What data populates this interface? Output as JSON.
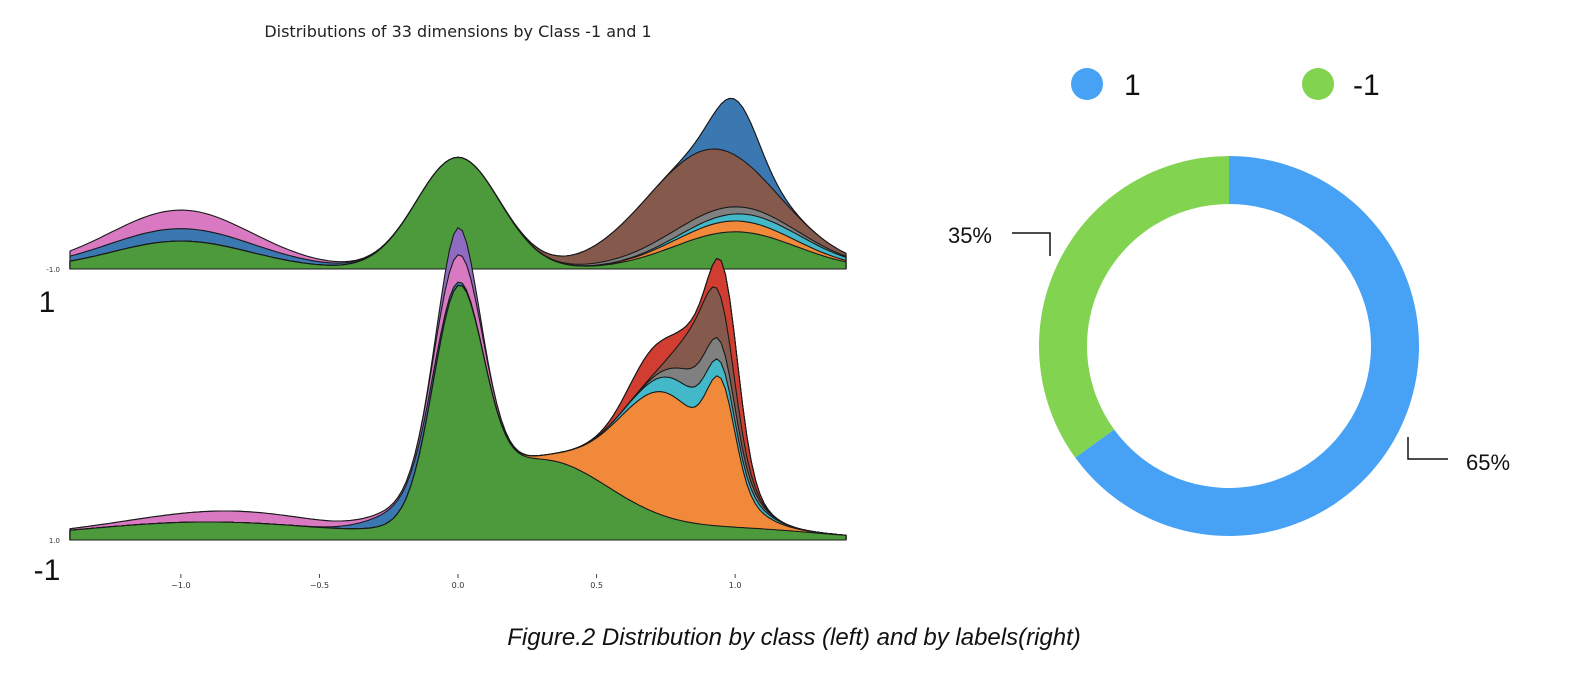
{
  "figure_caption": "Figure.2 Distribution by class (left) and by labels(right)",
  "chart_data": [
    {
      "type": "area",
      "title": "Distributions of 33 dimensions by Class -1 and 1",
      "xlabel": "",
      "ylabel": "",
      "x_ticks": [
        -1.0,
        -0.5,
        0.0,
        0.5,
        1.0
      ],
      "x_tick_labels": [
        "−1.0",
        "−0.5",
        "0.0",
        "0.5",
        "1.0"
      ],
      "xlim": [
        -1.4,
        1.4
      ],
      "grid": false,
      "panels": [
        {
          "label": "1",
          "baseline_label": "-1.0",
          "layers": [
            {
              "color": "#4c9a3c",
              "peaks": [
                [
                  -1.0,
                  0.18,
                  0.25
                ],
                [
                  0.0,
                  0.72,
                  0.15
                ],
                [
                  1.0,
                  0.24,
                  0.22
                ]
              ]
            },
            {
              "color": "#f08a3a",
              "peaks": [
                [
                  1.0,
                  0.07,
                  0.2
                ]
              ]
            },
            {
              "color": "#42b8c8",
              "peaks": [
                [
                  1.1,
                  0.05,
                  0.22
                ]
              ]
            },
            {
              "color": "#808080",
              "peaks": [
                [
                  0.9,
                  0.05,
                  0.25
                ]
              ]
            },
            {
              "color": "#85594b",
              "peaks": [
                [
                  0.85,
                  0.42,
                  0.22
                ]
              ]
            },
            {
              "color": "#3b77b0",
              "peaks": [
                [
                  -1.0,
                  0.08,
                  0.3
                ],
                [
                  1.0,
                  0.36,
                  0.08
                ]
              ]
            },
            {
              "color": "#d879c2",
              "peaks": [
                [
                  -1.0,
                  0.12,
                  0.25
                ]
              ]
            }
          ]
        },
        {
          "label": "-1",
          "baseline_label": "1.0",
          "layers": [
            {
              "color": "#4c9a3c",
              "peaks": [
                [
                  -0.9,
                  0.08,
                  0.45
                ],
                [
                  0.0,
                  0.95,
                  0.09
                ],
                [
                  0.3,
                  0.35,
                  0.25
                ],
                [
                  1.0,
                  0.05,
                  0.3
                ]
              ]
            },
            {
              "color": "#f08a3a",
              "peaks": [
                [
                  0.75,
                  0.55,
                  0.17
                ],
                [
                  0.95,
                  0.38,
                  0.05
                ]
              ]
            },
            {
              "color": "#42b8c8",
              "peaks": [
                [
                  0.85,
                  0.09,
                  0.14
                ]
              ]
            },
            {
              "color": "#808080",
              "peaks": [
                [
                  0.9,
                  0.1,
                  0.1
                ]
              ]
            },
            {
              "color": "#85594b",
              "peaks": [
                [
                  0.9,
                  0.24,
                  0.08
                ]
              ]
            },
            {
              "color": "#d23d32",
              "peaks": [
                [
                  0.7,
                  0.12,
                  0.08
                ],
                [
                  0.98,
                  0.2,
                  0.05
                ]
              ]
            },
            {
              "color": "#3b77b0",
              "peaks": [
                [
                  -0.2,
                  0.06,
                  0.12
                ]
              ]
            },
            {
              "color": "#d879c2",
              "peaks": [
                [
                  -0.8,
                  0.05,
                  0.3
                ],
                [
                  0.0,
                  0.12,
                  0.08
                ]
              ]
            },
            {
              "color": "#8f6cc2",
              "peaks": [
                [
                  0.0,
                  0.12,
                  0.05
                ]
              ]
            }
          ]
        }
      ]
    },
    {
      "type": "pie",
      "donut": true,
      "title": "",
      "legend_position": "top",
      "slices": [
        {
          "label": "1",
          "value": 65,
          "value_label": "65%",
          "color": "#47a2f5"
        },
        {
          "label": "-1",
          "value": 35,
          "value_label": "35%",
          "color": "#81d350"
        }
      ]
    }
  ]
}
